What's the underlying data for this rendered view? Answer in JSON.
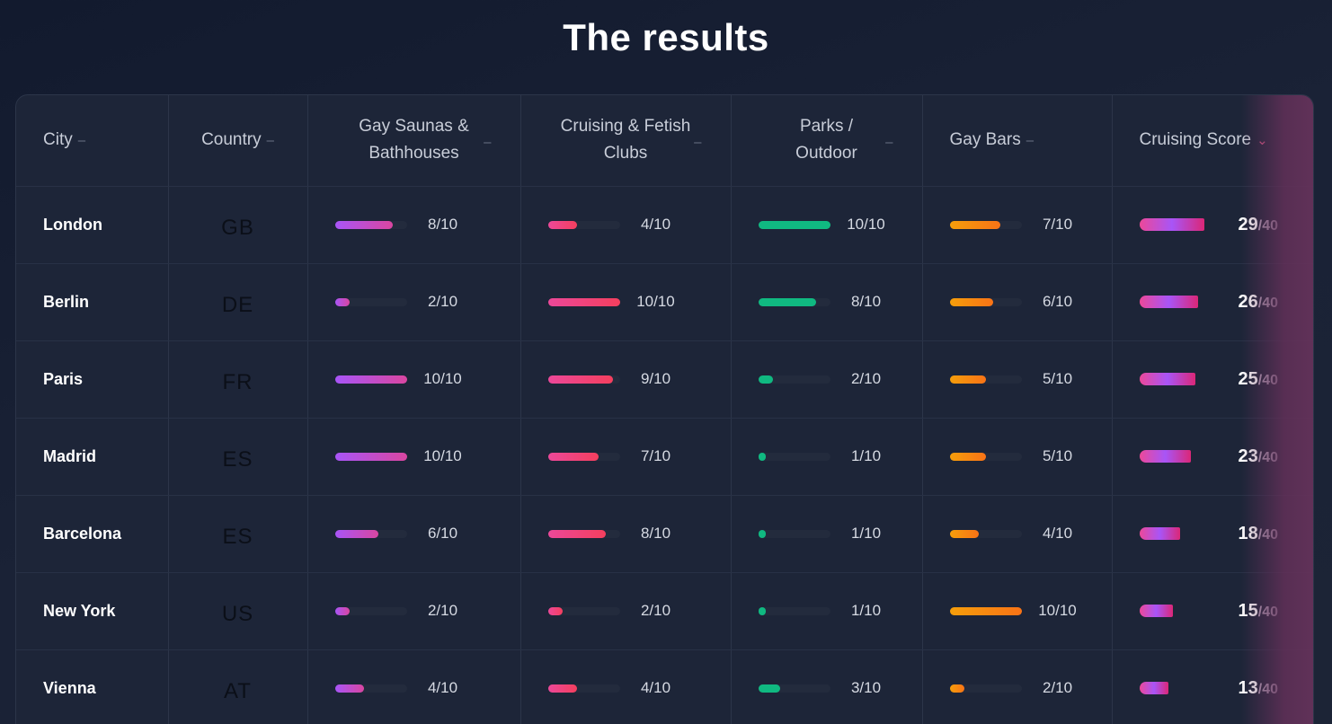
{
  "title": "The results",
  "columns": [
    {
      "label": "City",
      "sort": "–"
    },
    {
      "label": "Country",
      "sort": "–"
    },
    {
      "label": "Gay Saunas & Bathhouses",
      "sort": "–"
    },
    {
      "label": "Cruising & Fetish Clubs",
      "sort": "–"
    },
    {
      "label": "Parks / Outdoor",
      "sort": "–"
    },
    {
      "label": "Gay Bars",
      "sort": "–"
    },
    {
      "label": "Cruising Score",
      "sort": "⌄"
    }
  ],
  "score_denominator": "/40",
  "colors": {
    "saunas": "#a855f7",
    "clubs": "#ec4899",
    "parks": "#10b981",
    "bars": "#f59e0b"
  },
  "rows": [
    {
      "city": "London",
      "country": "GB",
      "saunas": "8/10",
      "clubs": "4/10",
      "parks": "10/10",
      "bars": "7/10",
      "score": "29",
      "fill": {
        "saunas": 0.8,
        "clubs": 0.4,
        "parks": 1.0,
        "bars": 0.7,
        "score": 0.725
      }
    },
    {
      "city": "Berlin",
      "country": "DE",
      "saunas": "2/10",
      "clubs": "10/10",
      "parks": "8/10",
      "bars": "6/10",
      "score": "26",
      "fill": {
        "saunas": 0.2,
        "clubs": 1.0,
        "parks": 0.8,
        "bars": 0.6,
        "score": 0.65
      }
    },
    {
      "city": "Paris",
      "country": "FR",
      "saunas": "10/10",
      "clubs": "9/10",
      "parks": "2/10",
      "bars": "5/10",
      "score": "25",
      "fill": {
        "saunas": 1.0,
        "clubs": 0.9,
        "parks": 0.2,
        "bars": 0.5,
        "score": 0.625
      }
    },
    {
      "city": "Madrid",
      "country": "ES",
      "saunas": "10/10",
      "clubs": "7/10",
      "parks": "1/10",
      "bars": "5/10",
      "score": "23",
      "fill": {
        "saunas": 1.0,
        "clubs": 0.7,
        "parks": 0.1,
        "bars": 0.5,
        "score": 0.575
      }
    },
    {
      "city": "Barcelona",
      "country": "ES",
      "saunas": "6/10",
      "clubs": "8/10",
      "parks": "1/10",
      "bars": "4/10",
      "score": "18",
      "fill": {
        "saunas": 0.6,
        "clubs": 0.8,
        "parks": 0.1,
        "bars": 0.4,
        "score": 0.45
      }
    },
    {
      "city": "New York",
      "country": "US",
      "saunas": "2/10",
      "clubs": "2/10",
      "parks": "1/10",
      "bars": "10/10",
      "score": "15",
      "fill": {
        "saunas": 0.2,
        "clubs": 0.2,
        "parks": 0.1,
        "bars": 1.0,
        "score": 0.375
      }
    },
    {
      "city": "Vienna",
      "country": "AT",
      "saunas": "4/10",
      "clubs": "4/10",
      "parks": "3/10",
      "bars": "2/10",
      "score": "13",
      "fill": {
        "saunas": 0.4,
        "clubs": 0.4,
        "parks": 0.3,
        "bars": 0.2,
        "score": 0.325
      }
    }
  ]
}
